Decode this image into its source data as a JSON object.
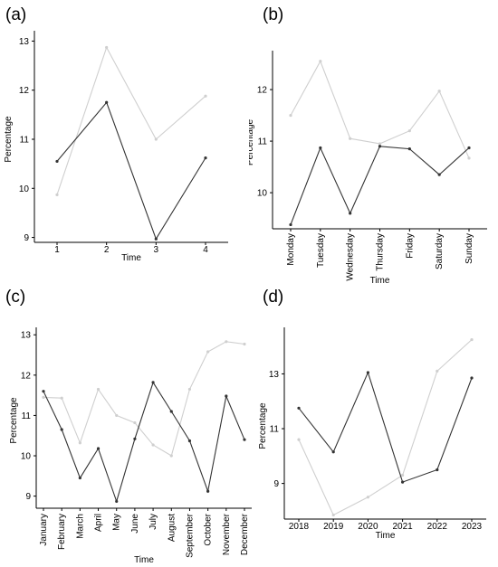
{
  "chart_data": [
    {
      "type": "line",
      "panel_label": "(a)",
      "xlabel": "Time",
      "ylabel": "Percentage",
      "categories": [
        "1",
        "2",
        "3",
        "4"
      ],
      "ylim": [
        8.9,
        13.1
      ],
      "yticks": [
        "9",
        "10",
        "11",
        "12",
        "13"
      ],
      "series": [
        {
          "color": "#333333",
          "values": [
            10.55,
            11.75,
            8.97,
            10.62
          ]
        },
        {
          "color": "#cfcfcf",
          "values": [
            9.87,
            12.87,
            11.0,
            11.88
          ]
        }
      ]
    },
    {
      "type": "line",
      "panel_label": "(b)",
      "xlabel": "Time",
      "ylabel": "Percentage",
      "categories": [
        "Monday",
        "Tuesday",
        "Wednesday",
        "Thursday",
        "Friday",
        "Saturday",
        "Sunday"
      ],
      "ylim": [
        9.3,
        12.65
      ],
      "yticks": [
        "10",
        "11",
        "12"
      ],
      "series": [
        {
          "color": "#333333",
          "values": [
            9.38,
            10.87,
            9.6,
            10.9,
            10.85,
            10.35,
            10.87
          ]
        },
        {
          "color": "#cfcfcf",
          "values": [
            11.5,
            12.55,
            11.05,
            10.95,
            11.2,
            11.97,
            10.67
          ]
        }
      ]
    },
    {
      "type": "line",
      "panel_label": "(c)",
      "xlabel": "Time",
      "ylabel": "Percentage",
      "categories": [
        "January",
        "February",
        "March",
        "April",
        "May",
        "June",
        "July",
        "August",
        "September",
        "October",
        "November",
        "December"
      ],
      "ylim": [
        8.7,
        13.05
      ],
      "yticks": [
        "9",
        "10",
        "11",
        "12",
        "13"
      ],
      "series": [
        {
          "color": "#333333",
          "values": [
            11.6,
            10.65,
            9.45,
            10.18,
            8.87,
            10.42,
            11.82,
            11.1,
            10.37,
            9.12,
            11.48,
            10.4
          ]
        },
        {
          "color": "#cfcfcf",
          "values": [
            11.45,
            11.43,
            10.32,
            11.65,
            11.0,
            10.82,
            10.27,
            10.0,
            11.65,
            12.58,
            12.83,
            12.77
          ]
        }
      ]
    },
    {
      "type": "line",
      "panel_label": "(d)",
      "xlabel": "Time",
      "ylabel": "Percentage",
      "categories": [
        "2018",
        "2019",
        "2020",
        "2021",
        "2022",
        "2023"
      ],
      "ylim": [
        7.7,
        14.5
      ],
      "yticks": [
        "9",
        "11",
        "13"
      ],
      "series": [
        {
          "color": "#333333",
          "values": [
            11.75,
            10.15,
            13.05,
            9.05,
            9.5,
            12.85
          ]
        },
        {
          "color": "#cfcfcf",
          "values": [
            10.6,
            7.85,
            8.5,
            9.3,
            13.1,
            14.25
          ]
        }
      ]
    }
  ]
}
